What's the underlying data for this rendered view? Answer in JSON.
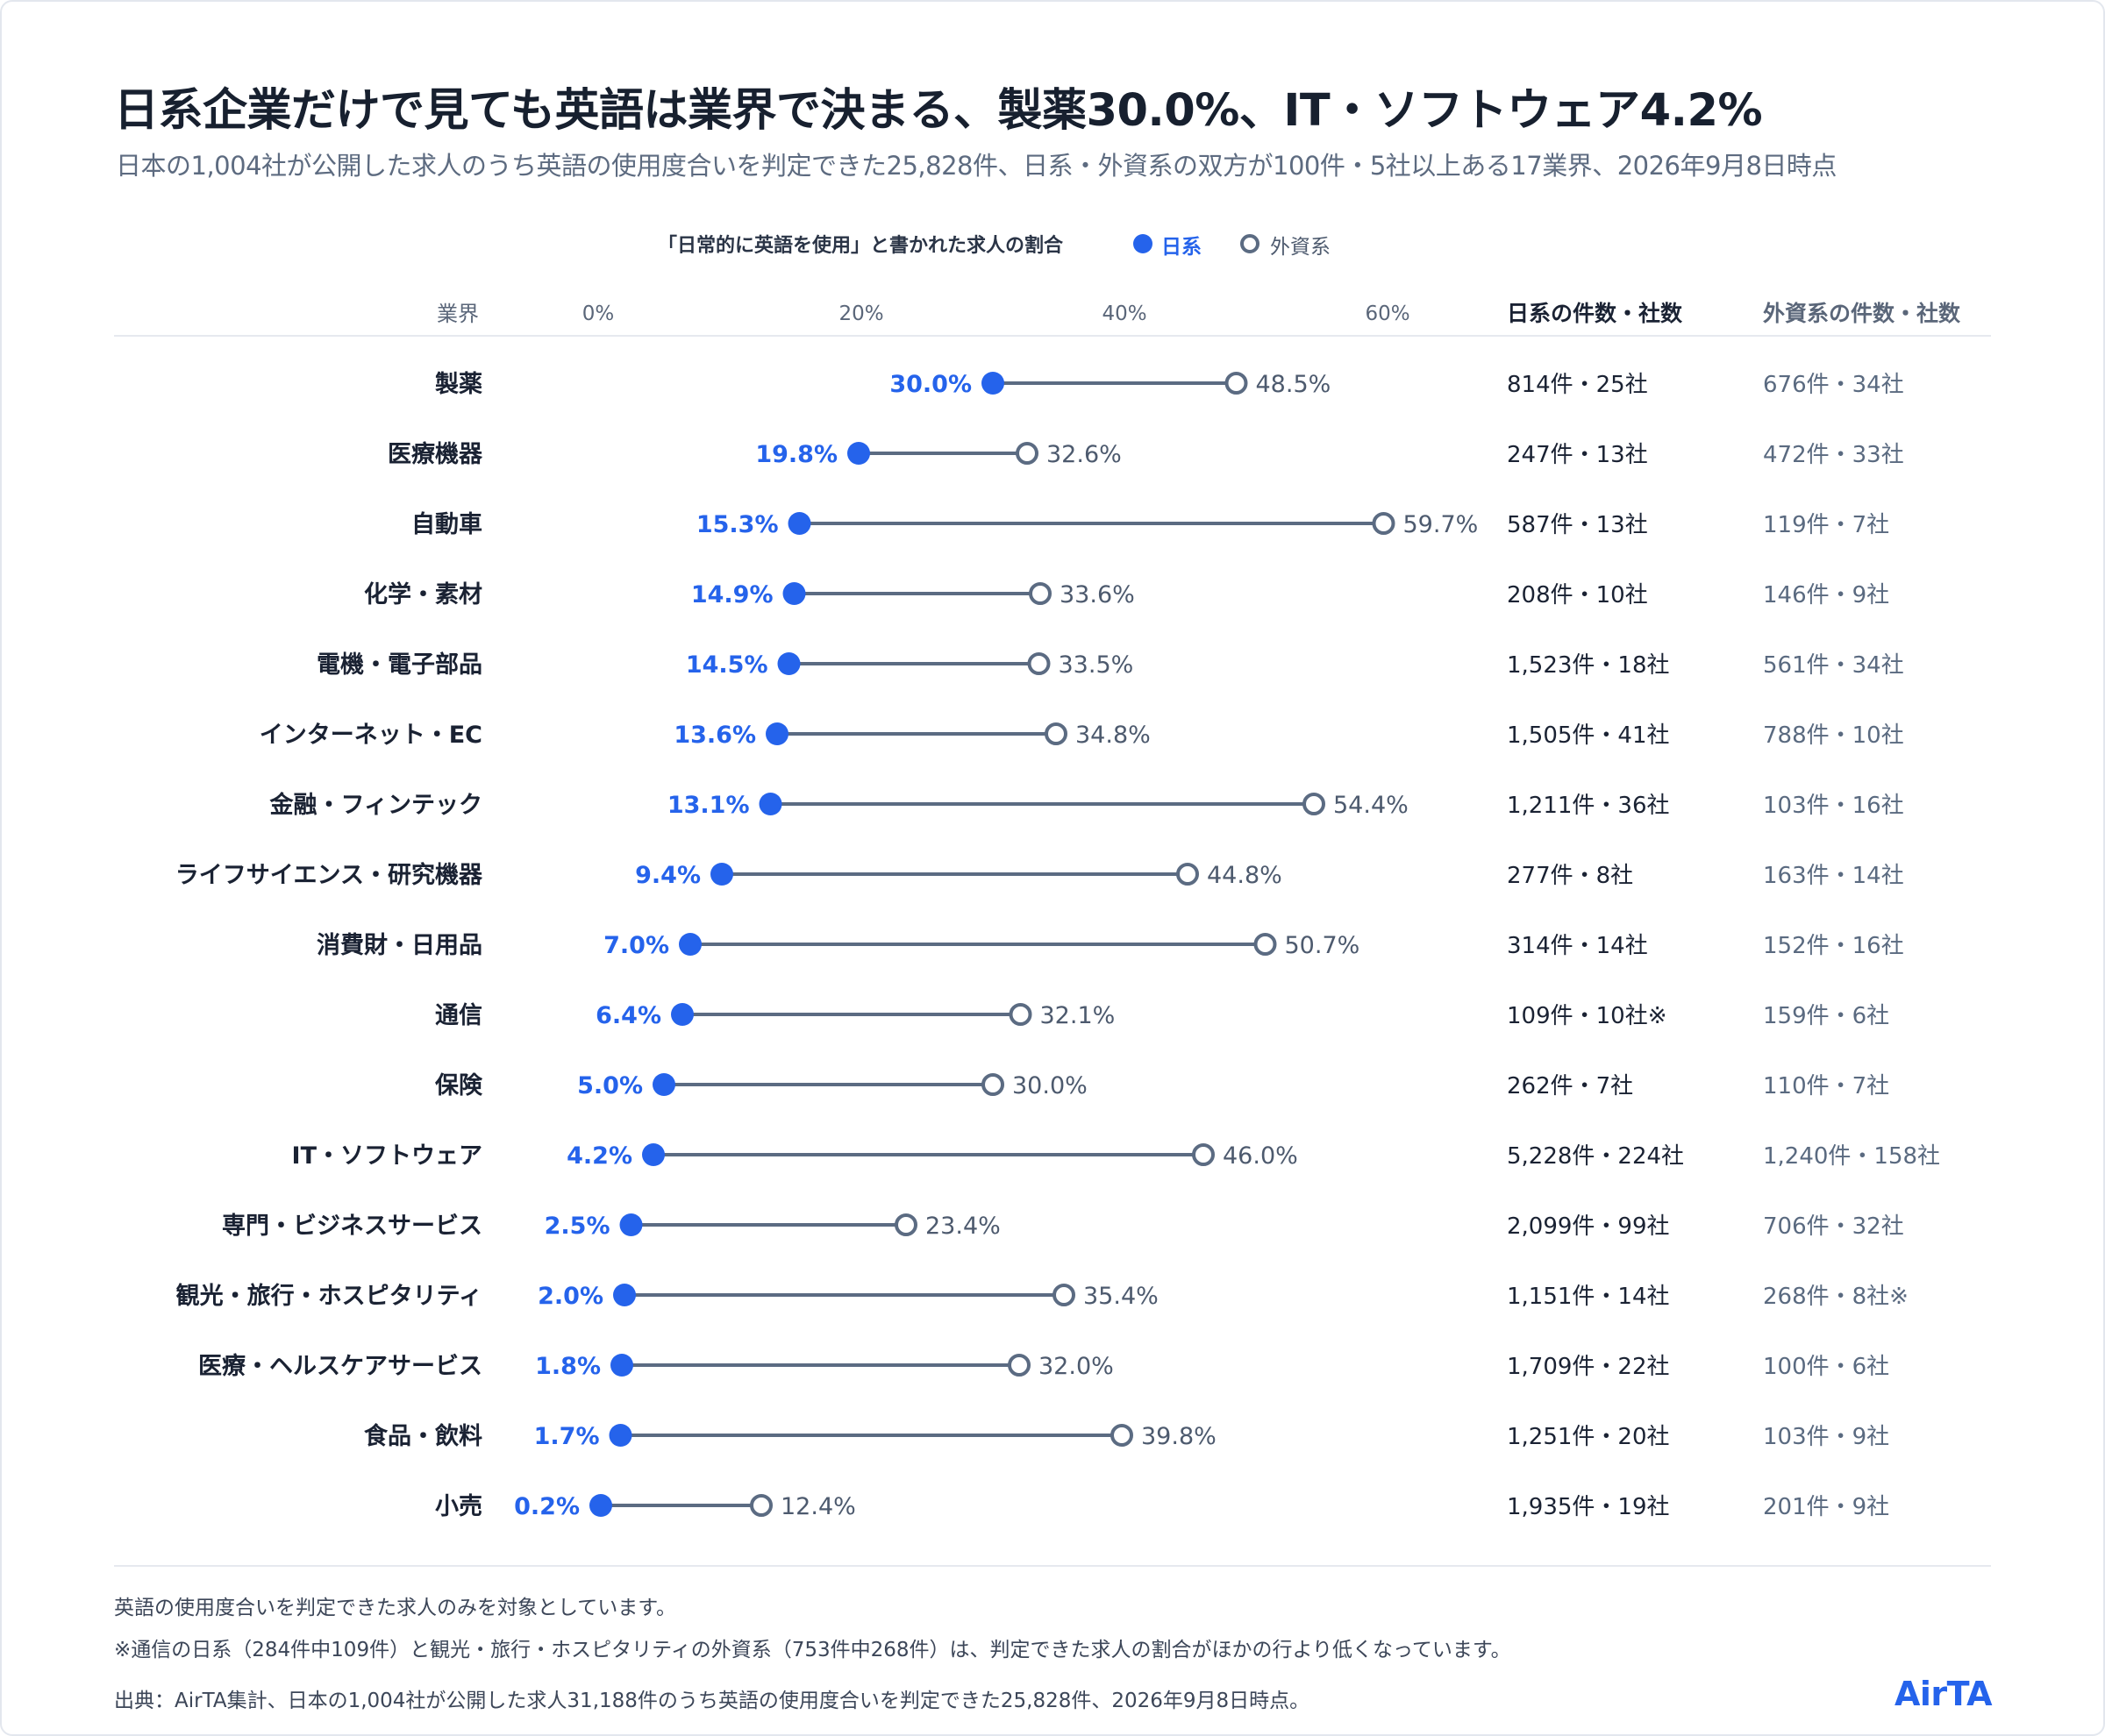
{
  "title": "日系企業だけで見ても英語は業界で決まる、製薬30.0%、IT・ソフトウェア4.2%",
  "subtitle": "日本の1,004社が公開した求人のうち英語の使用度合いを判定できた25,828件、日系・外資系の双方が100件・5社以上ある17業界、2026年9月8日時点",
  "legend": {
    "title": "「日常的に英語を使用」と書かれた求人の割合",
    "japanese": "日系",
    "foreign": "外資系"
  },
  "headers": {
    "industry": "業界",
    "japanese_counts": "日系の件数・社数",
    "foreign_counts": "外資系の件数・社数"
  },
  "colors": {
    "japanese": "#2563eb",
    "foreign": "#5b6b82",
    "line": "#5b6b82"
  },
  "chart_data": {
    "type": "dumbbell",
    "xlim": [
      0,
      60
    ],
    "x_ticks": [
      {
        "value": 0,
        "label": "0%"
      },
      {
        "value": 20,
        "label": "20%"
      },
      {
        "value": 40,
        "label": "40%"
      },
      {
        "value": 60,
        "label": "60%"
      }
    ],
    "rows": [
      {
        "industry": "製薬",
        "japanese": 30.0,
        "japanese_label": "30.0%",
        "foreign": 48.5,
        "foreign_label": "48.5%",
        "jp_counts": "814件・25社",
        "fg_counts": "676件・34社"
      },
      {
        "industry": "医療機器",
        "japanese": 19.8,
        "japanese_label": "19.8%",
        "foreign": 32.6,
        "foreign_label": "32.6%",
        "jp_counts": "247件・13社",
        "fg_counts": "472件・33社"
      },
      {
        "industry": "自動車",
        "japanese": 15.3,
        "japanese_label": "15.3%",
        "foreign": 59.7,
        "foreign_label": "59.7%",
        "jp_counts": "587件・13社",
        "fg_counts": "119件・7社"
      },
      {
        "industry": "化学・素材",
        "japanese": 14.9,
        "japanese_label": "14.9%",
        "foreign": 33.6,
        "foreign_label": "33.6%",
        "jp_counts": "208件・10社",
        "fg_counts": "146件・9社"
      },
      {
        "industry": "電機・電子部品",
        "japanese": 14.5,
        "japanese_label": "14.5%",
        "foreign": 33.5,
        "foreign_label": "33.5%",
        "jp_counts": "1,523件・18社",
        "fg_counts": "561件・34社"
      },
      {
        "industry": "インターネット・EC",
        "japanese": 13.6,
        "japanese_label": "13.6%",
        "foreign": 34.8,
        "foreign_label": "34.8%",
        "jp_counts": "1,505件・41社",
        "fg_counts": "788件・10社"
      },
      {
        "industry": "金融・フィンテック",
        "japanese": 13.1,
        "japanese_label": "13.1%",
        "foreign": 54.4,
        "foreign_label": "54.4%",
        "jp_counts": "1,211件・36社",
        "fg_counts": "103件・16社"
      },
      {
        "industry": "ライフサイエンス・研究機器",
        "japanese": 9.4,
        "japanese_label": "9.4%",
        "foreign": 44.8,
        "foreign_label": "44.8%",
        "jp_counts": "277件・8社",
        "fg_counts": "163件・14社"
      },
      {
        "industry": "消費財・日用品",
        "japanese": 7.0,
        "japanese_label": "7.0%",
        "foreign": 50.7,
        "foreign_label": "50.7%",
        "jp_counts": "314件・14社",
        "fg_counts": "152件・16社"
      },
      {
        "industry": "通信",
        "japanese": 6.4,
        "japanese_label": "6.4%",
        "foreign": 32.1,
        "foreign_label": "32.1%",
        "jp_counts": "109件・10社※",
        "fg_counts": "159件・6社"
      },
      {
        "industry": "保険",
        "japanese": 5.0,
        "japanese_label": "5.0%",
        "foreign": 30.0,
        "foreign_label": "30.0%",
        "jp_counts": "262件・7社",
        "fg_counts": "110件・7社"
      },
      {
        "industry": "IT・ソフトウェア",
        "japanese": 4.2,
        "japanese_label": "4.2%",
        "foreign": 46.0,
        "foreign_label": "46.0%",
        "jp_counts": "5,228件・224社",
        "fg_counts": "1,240件・158社"
      },
      {
        "industry": "専門・ビジネスサービス",
        "japanese": 2.5,
        "japanese_label": "2.5%",
        "foreign": 23.4,
        "foreign_label": "23.4%",
        "jp_counts": "2,099件・99社",
        "fg_counts": "706件・32社"
      },
      {
        "industry": "観光・旅行・ホスピタリティ",
        "japanese": 2.0,
        "japanese_label": "2.0%",
        "foreign": 35.4,
        "foreign_label": "35.4%",
        "jp_counts": "1,151件・14社",
        "fg_counts": "268件・8社※"
      },
      {
        "industry": "医療・ヘルスケアサービス",
        "japanese": 1.8,
        "japanese_label": "1.8%",
        "foreign": 32.0,
        "foreign_label": "32.0%",
        "jp_counts": "1,709件・22社",
        "fg_counts": "100件・6社"
      },
      {
        "industry": "食品・飲料",
        "japanese": 1.7,
        "japanese_label": "1.7%",
        "foreign": 39.8,
        "foreign_label": "39.8%",
        "jp_counts": "1,251件・20社",
        "fg_counts": "103件・9社"
      },
      {
        "industry": "小売",
        "japanese": 0.2,
        "japanese_label": "0.2%",
        "foreign": 12.4,
        "foreign_label": "12.4%",
        "jp_counts": "1,935件・19社",
        "fg_counts": "201件・9社"
      }
    ]
  },
  "footnotes": {
    "note1": "英語の使用度合いを判定できた求人のみを対象としています。",
    "note2": "※通信の日系（284件中109件）と観光・旅行・ホスピタリティの外資系（753件中268件）は、判定できた求人の割合がほかの行より低くなっています。",
    "source": "出典：AirTA集計、日本の1,004社が公開した求人31,188件のうち英語の使用度合いを判定できた25,828件、2026年9月8日時点。"
  },
  "logo": "AirTA"
}
